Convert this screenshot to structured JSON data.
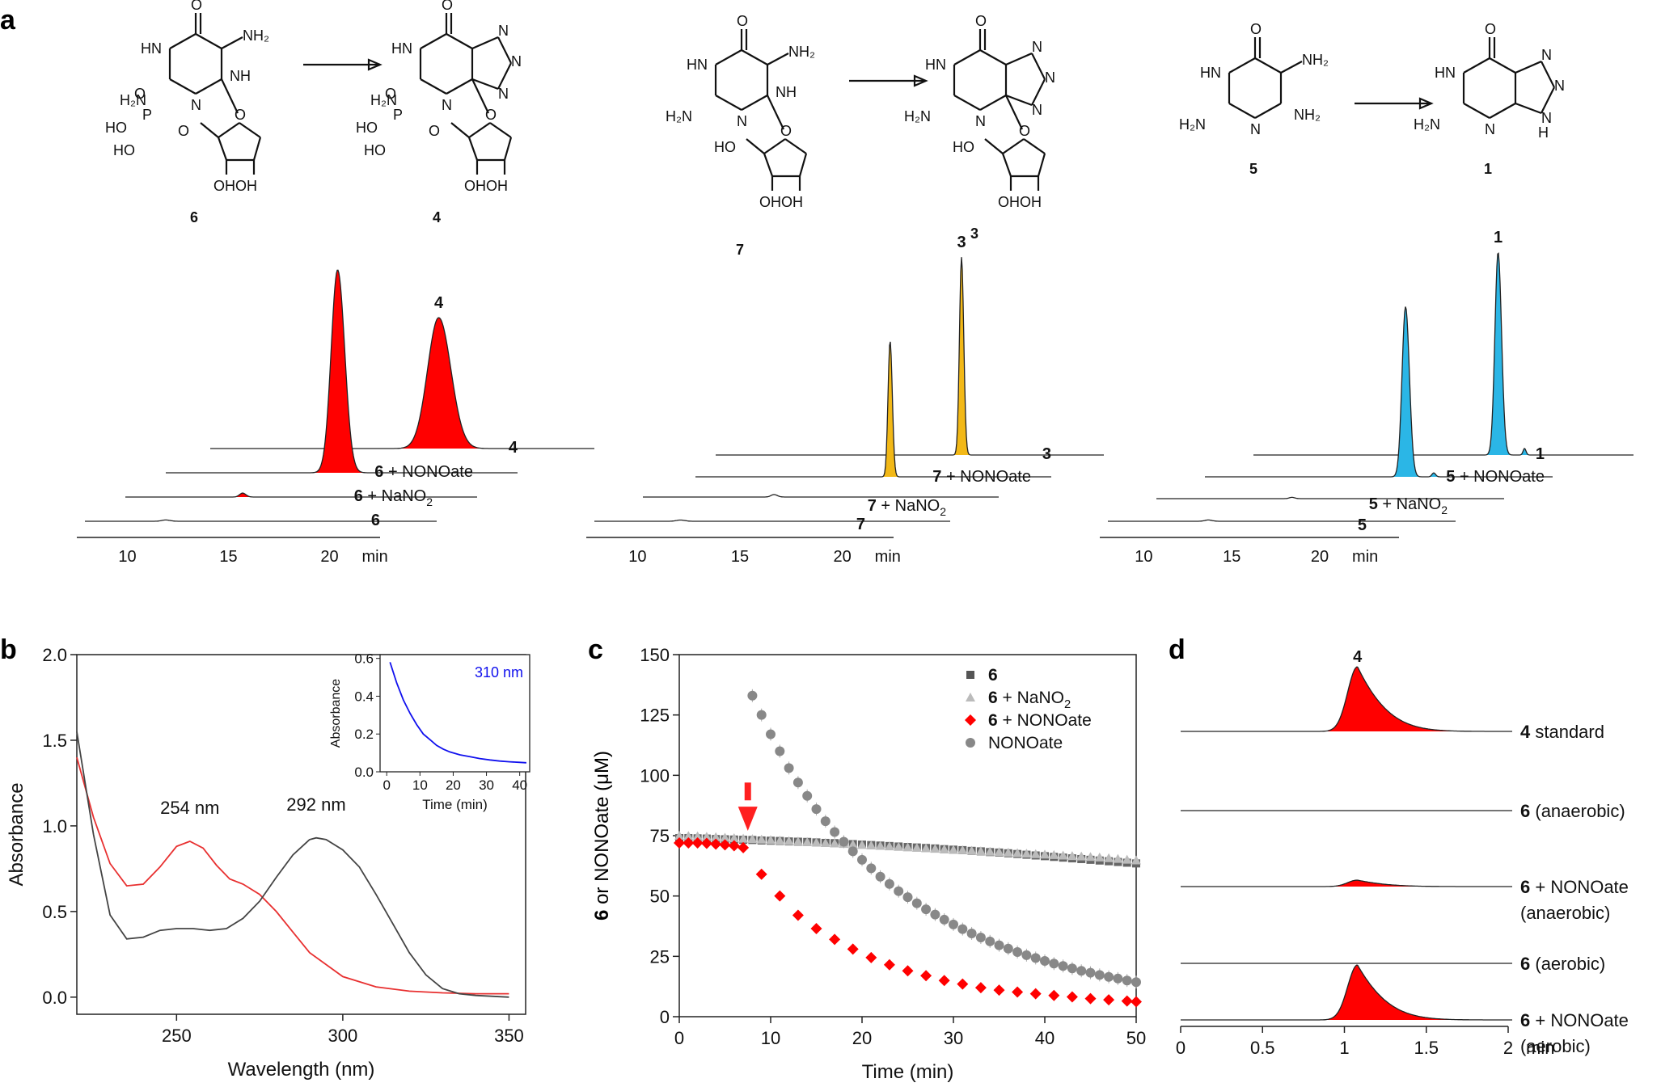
{
  "panel_labels": {
    "a": "a",
    "b": "b",
    "c": "c",
    "d": "d"
  },
  "chemistry": {
    "groups": [
      {
        "from": "6",
        "to": "4"
      },
      {
        "from": "7",
        "to": "3"
      },
      {
        "from": "5",
        "to": "1"
      }
    ],
    "atoms": {
      "O": "O",
      "HN": "HN",
      "HN2": "H₂N",
      "NH2": "NH₂",
      "NH": "NH",
      "N": "N",
      "H": "H",
      "HO": "HO",
      "OHOH": "OHOH",
      "P": "P"
    }
  },
  "chart_data": [
    {
      "id": "a1",
      "type": "chromatogram",
      "color": "#ff0000",
      "peak_label": "4",
      "traces": [
        {
          "label_num": "4",
          "label_text": "",
          "peaks": [
            {
              "t": 18.8,
              "h": 1.0,
              "w": 0.55
            }
          ]
        },
        {
          "label_num": "6",
          "label_text": " + NONOate",
          "peaks": [
            {
              "t": 16.0,
              "h": 1.55,
              "w": 0.32
            }
          ]
        },
        {
          "label_num": "6",
          "label_text": " + NaNO",
          "label_sub": "2",
          "peaks": [
            {
              "t": 13.3,
              "h": 0.03,
              "w": 0.15
            }
          ]
        },
        {
          "label_num": "6",
          "label_text": "",
          "peaks": [
            {
              "t": 11.5,
              "h": 0.01,
              "w": 0.2
            }
          ]
        }
      ],
      "xticks": [
        "10",
        "15",
        "20"
      ],
      "xunit": "min"
    },
    {
      "id": "a2",
      "type": "chromatogram",
      "color": "#f2b817",
      "peak_label": "3",
      "traces": [
        {
          "label_num": "3",
          "label_text": "",
          "peaks": [
            {
              "t": 19.5,
              "h": 1.6,
              "w": 0.1
            }
          ]
        },
        {
          "label_num": "7",
          "label_text": " + NONOate",
          "peaks": [
            {
              "t": 17.0,
              "h": 1.1,
              "w": 0.1
            }
          ]
        },
        {
          "label_num": "7",
          "label_text": " + NaNO",
          "label_sub": "2",
          "peaks": [
            {
              "t": 13.9,
              "h": 0.02,
              "w": 0.15
            }
          ]
        },
        {
          "label_num": "7",
          "label_text": "",
          "peaks": [
            {
              "t": 11.7,
              "h": 0.01,
              "w": 0.2
            }
          ]
        }
      ],
      "xticks": [
        "10",
        "15",
        "20"
      ],
      "xunit": "min"
    },
    {
      "id": "a3",
      "type": "chromatogram",
      "color": "#2bb6e6",
      "peak_label": "1",
      "traces": [
        {
          "label_num": "1",
          "label_text": "",
          "peaks": [
            {
              "t": 21.4,
              "h": 1.55,
              "w": 0.18
            },
            {
              "t": 22.9,
              "h": 0.05,
              "w": 0.08
            }
          ]
        },
        {
          "label_num": "5",
          "label_text": " + NONOate",
          "peaks": [
            {
              "t": 18.9,
              "h": 1.3,
              "w": 0.2
            },
            {
              "t": 20.5,
              "h": 0.03,
              "w": 0.1
            }
          ]
        },
        {
          "label_num": "5",
          "label_text": " + NaNO",
          "label_sub": "2",
          "peaks": [
            {
              "t": 15.2,
              "h": 0.01,
              "w": 0.15
            }
          ]
        },
        {
          "label_num": "5",
          "label_text": "",
          "peaks": [
            {
              "t": 13.2,
              "h": 0.01,
              "w": 0.2
            }
          ]
        }
      ],
      "xticks": [
        "10",
        "15",
        "20"
      ],
      "xunit": "min"
    },
    {
      "id": "b",
      "type": "line",
      "xlabel": "Wavelength (nm)",
      "ylabel": "Absorbance",
      "xlim": [
        220,
        355
      ],
      "ylim": [
        -0.1,
        2.0
      ],
      "xticks": [
        250,
        300,
        350
      ],
      "yticks": [
        "0.0",
        "0.5",
        "1.0",
        "1.5",
        "2.0"
      ],
      "annotations": [
        "254 nm",
        "292 nm"
      ],
      "series": [
        {
          "name": "red",
          "color": "#e83030",
          "x": [
            220,
            225,
            230,
            235,
            240,
            245,
            250,
            254,
            258,
            262,
            266,
            270,
            275,
            280,
            285,
            290,
            300,
            310,
            320,
            330,
            340,
            350
          ],
          "y": [
            1.4,
            1.05,
            0.78,
            0.65,
            0.66,
            0.76,
            0.88,
            0.91,
            0.87,
            0.77,
            0.69,
            0.66,
            0.6,
            0.5,
            0.38,
            0.26,
            0.12,
            0.06,
            0.035,
            0.025,
            0.02,
            0.02
          ]
        },
        {
          "name": "black",
          "color": "#444444",
          "x": [
            220,
            225,
            230,
            235,
            240,
            245,
            250,
            255,
            260,
            265,
            270,
            275,
            280,
            285,
            290,
            292,
            295,
            300,
            305,
            310,
            315,
            320,
            325,
            330,
            335,
            340,
            350
          ],
          "y": [
            1.55,
            0.95,
            0.48,
            0.34,
            0.35,
            0.39,
            0.4,
            0.4,
            0.39,
            0.4,
            0.46,
            0.56,
            0.7,
            0.83,
            0.92,
            0.93,
            0.92,
            0.86,
            0.76,
            0.6,
            0.43,
            0.26,
            0.13,
            0.05,
            0.02,
            0.01,
            0.0
          ]
        }
      ],
      "inset": {
        "xlabel": "Time (min)",
        "ylabel": "Absorbance",
        "label": "310 nm",
        "xlim": [
          -2,
          43
        ],
        "ylim": [
          0.0,
          0.62
        ],
        "xticks": [
          0,
          10,
          20,
          30,
          40
        ],
        "yticks": [
          "0.0",
          "0.2",
          "0.4",
          "0.6"
        ],
        "color": "#1010ee",
        "x": [
          1,
          3,
          5,
          7,
          9,
          11,
          13,
          15,
          17,
          19,
          22,
          25,
          28,
          31,
          34,
          37,
          40,
          42
        ],
        "y": [
          0.58,
          0.47,
          0.38,
          0.31,
          0.25,
          0.2,
          0.17,
          0.14,
          0.12,
          0.105,
          0.09,
          0.08,
          0.07,
          0.063,
          0.057,
          0.053,
          0.05,
          0.048
        ]
      }
    },
    {
      "id": "c",
      "type": "scatter",
      "xlabel": "Time (min)",
      "ylabel": "6 or NONOate (μM)",
      "ylabel_bold": "6",
      "ylabel_rest": " or NONOate (μM)",
      "xlim": [
        0,
        50
      ],
      "ylim": [
        0,
        150
      ],
      "xticks": [
        0,
        10,
        20,
        30,
        40,
        50
      ],
      "yticks": [
        0,
        25,
        50,
        75,
        100,
        125,
        150
      ],
      "arrow_at_x": 7.5,
      "legend": [
        {
          "num": "6",
          "text": "",
          "marker": "square",
          "color": "#555555"
        },
        {
          "num": "6",
          "text": " + NaNO",
          "sub": "2",
          "marker": "triangle",
          "color": "#bbbbbb"
        },
        {
          "num": "6",
          "text": " + NONOate",
          "marker": "diamond",
          "color": "#ff0000"
        },
        {
          "num": "",
          "text": "NONOate",
          "marker": "circle",
          "color": "#888888"
        }
      ],
      "series": [
        {
          "name": "6",
          "marker": "square",
          "color": "#666666",
          "x": [
            0,
            1,
            2,
            3,
            4,
            5,
            6,
            7,
            8,
            9,
            10,
            11,
            12,
            13,
            14,
            15,
            16,
            17,
            18,
            19,
            20,
            21,
            22,
            23,
            24,
            25,
            26,
            27,
            28,
            29,
            30,
            31,
            32,
            33,
            34,
            35,
            36,
            37,
            38,
            39,
            40,
            41,
            42,
            43,
            44,
            45,
            46,
            47,
            48,
            49,
            50
          ],
          "y": [
            74,
            74,
            73.9,
            73.8,
            73.6,
            73.5,
            73.4,
            73.3,
            73.2,
            73,
            72.9,
            72.8,
            72.6,
            72.5,
            72.4,
            72.2,
            72,
            71.9,
            71.7,
            71.5,
            71.3,
            71.1,
            70.9,
            70.7,
            70.5,
            70.3,
            70.1,
            69.9,
            69.7,
            69.4,
            69.2,
            69,
            68.7,
            68.5,
            68.2,
            68,
            67.7,
            67.4,
            67.1,
            66.8,
            66.5,
            66.2,
            65.9,
            65.6,
            65.3,
            65,
            64.7,
            64.4,
            64.1,
            63.8,
            63.5
          ]
        },
        {
          "name": "6 + NaNO2",
          "marker": "triangle",
          "color": "#bbbbbb",
          "x": [
            0,
            1,
            2,
            3,
            4,
            5,
            6,
            7,
            8,
            9,
            10,
            11,
            12,
            13,
            14,
            15,
            16,
            17,
            18,
            19,
            20,
            21,
            22,
            23,
            24,
            25,
            26,
            27,
            28,
            29,
            30,
            31,
            32,
            33,
            34,
            35,
            36,
            37,
            38,
            39,
            40,
            41,
            42,
            43,
            44,
            45,
            46,
            47,
            48,
            49,
            50
          ],
          "y": [
            75,
            74.9,
            74.8,
            74.6,
            74.4,
            74.2,
            74,
            73.8,
            73.6,
            73.4,
            73.2,
            73,
            72.8,
            72.6,
            72.4,
            72.2,
            72,
            71.8,
            71.6,
            71.4,
            71.2,
            71,
            70.8,
            70.6,
            70.4,
            70.2,
            70,
            69.8,
            69.6,
            69.4,
            69.2,
            69,
            68.8,
            68.6,
            68.4,
            68.2,
            68,
            67.8,
            67.6,
            67.4,
            67.2,
            67,
            66.8,
            66.6,
            66.4,
            66.2,
            66,
            65.7,
            65.4,
            65.1,
            64.8
          ]
        },
        {
          "name": "6 + NONOate",
          "marker": "diamond",
          "color": "#ff0000",
          "x": [
            0,
            1,
            2,
            3,
            4,
            5,
            6,
            7,
            9,
            11,
            13,
            15,
            17,
            19,
            21,
            23,
            25,
            27,
            29,
            31,
            33,
            35,
            37,
            39,
            41,
            43,
            45,
            47,
            49,
            50
          ],
          "y": [
            72,
            72,
            72,
            71.8,
            71.5,
            71.2,
            70.8,
            70,
            59,
            50,
            42,
            36.5,
            32,
            28,
            24.5,
            21.5,
            19,
            17,
            15,
            13.5,
            12,
            11,
            10.2,
            9.5,
            8.8,
            8.2,
            7.5,
            7,
            6.5,
            6.2
          ]
        },
        {
          "name": "NONOate",
          "marker": "circle",
          "color": "#888888",
          "x": [
            8,
            9,
            10,
            11,
            12,
            13,
            14,
            15,
            16,
            17,
            18,
            19,
            20,
            21,
            22,
            23,
            24,
            25,
            26,
            27,
            28,
            29,
            30,
            31,
            32,
            33,
            34,
            35,
            36,
            37,
            38,
            39,
            40,
            41,
            42,
            43,
            44,
            45,
            46,
            47,
            48,
            49,
            50
          ],
          "y": [
            133,
            125,
            117,
            110,
            103,
            97,
            91.5,
            86,
            81,
            76.5,
            72.5,
            68.5,
            65,
            61.5,
            58,
            55,
            52,
            49.5,
            47,
            44.5,
            42.3,
            40.2,
            38.2,
            36.3,
            34.5,
            32.8,
            31.2,
            29.6,
            28.2,
            26.8,
            25.5,
            24.3,
            23.1,
            22,
            21,
            20,
            19,
            18.2,
            17.3,
            16.5,
            15.8,
            15,
            14.3
          ]
        }
      ]
    },
    {
      "id": "d",
      "type": "chromatogram",
      "color": "#ff0000",
      "xlim": [
        0,
        2
      ],
      "xticks": [
        "0",
        "0.5",
        "1",
        "1.5",
        "2"
      ],
      "xunit": "min",
      "peak_label": "4",
      "traces": [
        {
          "label_num": "4",
          "label_text": " standard",
          "h": 1.0
        },
        {
          "label_num": "6",
          "label_text": " (anaerobic)",
          "h": 0.0
        },
        {
          "label_num": "6",
          "label_text": " + NONOate",
          "label_text2": "(anaerobic)",
          "h": 0.1
        },
        {
          "label_num": "6",
          "label_text": " (aerobic)",
          "h": 0.0
        },
        {
          "label_num": "6",
          "label_text": " + NONOate",
          "label_text2": "(aerobic)",
          "h": 0.85
        }
      ]
    }
  ]
}
